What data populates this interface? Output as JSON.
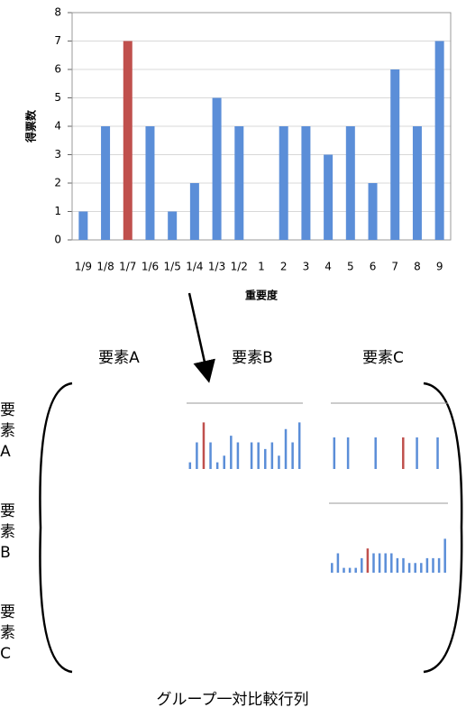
{
  "chart_data": [
    {
      "type": "bar",
      "y_label": "得票数",
      "x_label": "重要度",
      "categories": [
        "1/9",
        "1/8",
        "1/7",
        "1/6",
        "1/5",
        "1/4",
        "1/3",
        "1/2",
        "1",
        "2",
        "3",
        "4",
        "5",
        "6",
        "7",
        "8",
        "9"
      ],
      "values": [
        1,
        4,
        7,
        4,
        1,
        2,
        5,
        4,
        0,
        4,
        4,
        3,
        4,
        2,
        6,
        4,
        7
      ],
      "colors": [
        "#5b8ed8",
        "#5b8ed8",
        "#c0504d",
        "#5b8ed8",
        "#5b8ed8",
        "#5b8ed8",
        "#5b8ed8",
        "#5b8ed8",
        "#5b8ed8",
        "#5b8ed8",
        "#5b8ed8",
        "#5b8ed8",
        "#5b8ed8",
        "#5b8ed8",
        "#5b8ed8",
        "#5b8ed8",
        "#5b8ed8"
      ],
      "ylim": [
        0,
        8
      ],
      "yticks": [
        0,
        1,
        2,
        3,
        4,
        5,
        6,
        7,
        8
      ],
      "grid": true
    },
    {
      "type": "bar",
      "values": [
        1,
        4,
        7,
        4,
        1,
        2,
        5,
        4,
        0,
        4,
        4,
        3,
        4,
        2,
        6,
        4,
        7
      ],
      "colors": [
        "#5b8ed8",
        "#5b8ed8",
        "#c0504d",
        "#5b8ed8",
        "#5b8ed8",
        "#5b8ed8",
        "#5b8ed8",
        "#5b8ed8",
        "#5b8ed8",
        "#5b8ed8",
        "#5b8ed8",
        "#5b8ed8",
        "#5b8ed8",
        "#5b8ed8",
        "#5b8ed8",
        "#5b8ed8",
        "#5b8ed8"
      ],
      "ylim": [
        0,
        8
      ]
    },
    {
      "type": "bar",
      "values": [
        1,
        0,
        1,
        0,
        0,
        0,
        1,
        0,
        0,
        0,
        1,
        0,
        1,
        0,
        0,
        1,
        0
      ],
      "colors": [
        "#5b8ed8",
        "#5b8ed8",
        "#5b8ed8",
        "#5b8ed8",
        "#5b8ed8",
        "#5b8ed8",
        "#5b8ed8",
        "#5b8ed8",
        "#5b8ed8",
        "#5b8ed8",
        "#c0504d",
        "#5b8ed8",
        "#5b8ed8",
        "#5b8ed8",
        "#5b8ed8",
        "#5b8ed8",
        "#5b8ed8"
      ],
      "ylim": [
        0,
        1
      ]
    },
    {
      "type": "bar",
      "values": [
        2,
        4,
        1,
        1,
        1,
        3,
        5,
        4,
        4,
        4,
        4,
        3,
        3,
        2,
        2,
        2,
        3,
        3,
        3,
        7
      ],
      "colors": [
        "#5b8ed8",
        "#5b8ed8",
        "#5b8ed8",
        "#5b8ed8",
        "#5b8ed8",
        "#5b8ed8",
        "#c0504d",
        "#5b8ed8",
        "#5b8ed8",
        "#5b8ed8",
        "#5b8ed8",
        "#5b8ed8",
        "#5b8ed8",
        "#5b8ed8",
        "#5b8ed8",
        "#5b8ed8",
        "#5b8ed8",
        "#5b8ed8",
        "#5b8ed8",
        "#5b8ed8"
      ],
      "ylim": [
        0,
        8
      ]
    }
  ],
  "matrix": {
    "column_headers": [
      "要素A",
      "要素B",
      "要素C"
    ],
    "row_headers": [
      "要素A",
      "要素B",
      "要素C"
    ],
    "caption": "グループ一対比較行列"
  }
}
